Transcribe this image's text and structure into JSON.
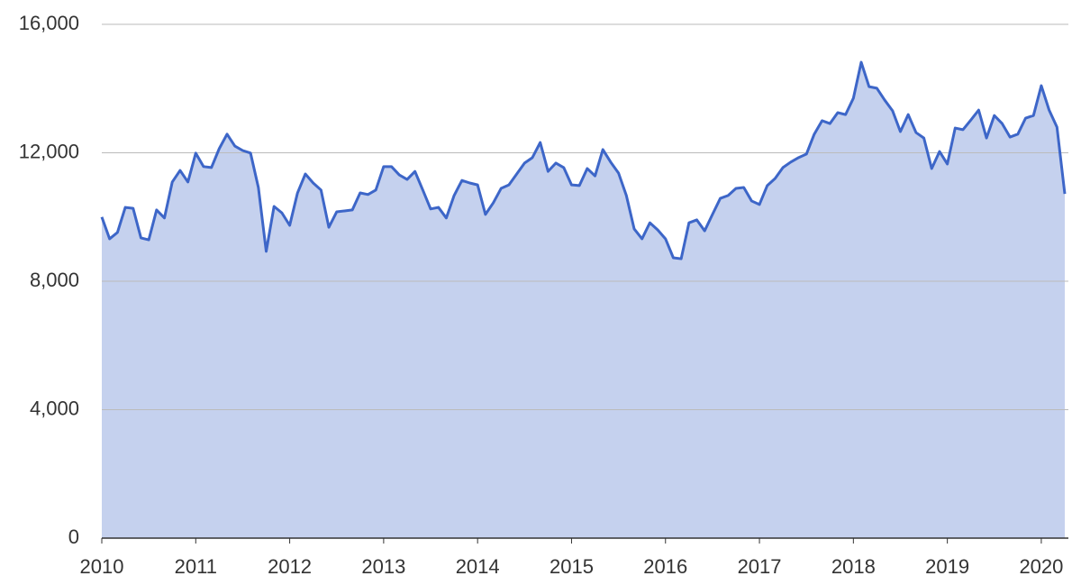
{
  "chart_data": {
    "type": "area",
    "x": [
      2010,
      2010.0833,
      2010.1667,
      2010.25,
      2010.3333,
      2010.4167,
      2010.5,
      2010.5833,
      2010.6667,
      2010.75,
      2010.8333,
      2010.9167,
      2011,
      2011.0833,
      2011.1667,
      2011.25,
      2011.3333,
      2011.4167,
      2011.5,
      2011.5833,
      2011.6667,
      2011.75,
      2011.8333,
      2011.9167,
      2012,
      2012.0833,
      2012.1667,
      2012.25,
      2012.3333,
      2012.4167,
      2012.5,
      2012.5833,
      2012.6667,
      2012.75,
      2012.8333,
      2012.9167,
      2013,
      2013.0833,
      2013.1667,
      2013.25,
      2013.3333,
      2013.4167,
      2013.5,
      2013.5833,
      2013.6667,
      2013.75,
      2013.8333,
      2013.9167,
      2014,
      2014.0833,
      2014.1667,
      2014.25,
      2014.3333,
      2014.4167,
      2014.5,
      2014.5833,
      2014.6667,
      2014.75,
      2014.8333,
      2014.9167,
      2015,
      2015.0833,
      2015.1667,
      2015.25,
      2015.3333,
      2015.4167,
      2015.5,
      2015.5833,
      2015.6667,
      2015.75,
      2015.8333,
      2015.9167,
      2016,
      2016.0833,
      2016.1667,
      2016.25,
      2016.3333,
      2016.4167,
      2016.5,
      2016.5833,
      2016.6667,
      2016.75,
      2016.8333,
      2016.9167,
      2017,
      2017.0833,
      2017.1667,
      2017.25,
      2017.3333,
      2017.4167,
      2017.5,
      2017.5833,
      2017.6667,
      2017.75,
      2017.8333,
      2017.9167,
      2018,
      2018.0833,
      2018.1667,
      2018.25,
      2018.3333,
      2018.4167,
      2018.5,
      2018.5833,
      2018.6667,
      2018.75,
      2018.8333,
      2018.9167,
      2019,
      2019.0833,
      2019.1667,
      2019.25,
      2019.3333,
      2019.4167,
      2019.5,
      2019.5833,
      2019.6667,
      2019.75,
      2019.8333,
      2019.9167,
      2020,
      2020.0833,
      2020.1667,
      2020.25
    ],
    "series": [
      {
        "color": "#3d66c8",
        "fill": "#c5d1ee",
        "values": [
          10000,
          9320,
          9520,
          10300,
          10270,
          9350,
          9290,
          10220,
          9970,
          11090,
          11450,
          11090,
          11990,
          11570,
          11540,
          12130,
          12580,
          12210,
          12070,
          11990,
          10920,
          8930,
          10330,
          10130,
          9740,
          10750,
          11340,
          11060,
          10840,
          9680,
          10160,
          10190,
          10220,
          10750,
          10700,
          10840,
          11570,
          11570,
          11310,
          11170,
          11420,
          10840,
          10250,
          10300,
          9970,
          10670,
          11140,
          11060,
          11000,
          10080,
          10440,
          10890,
          11000,
          11340,
          11680,
          11850,
          12320,
          11420,
          11680,
          11540,
          11000,
          10980,
          11510,
          11280,
          12100,
          11710,
          11370,
          10670,
          9630,
          9320,
          9820,
          9600,
          9320,
          8730,
          8700,
          9820,
          9910,
          9570,
          10080,
          10580,
          10670,
          10890,
          10920,
          10500,
          10390,
          10980,
          11200,
          11540,
          11710,
          11850,
          11960,
          12580,
          13000,
          12910,
          13250,
          13190,
          13700,
          14820,
          14060,
          14010,
          13640,
          13310,
          12660,
          13190,
          12630,
          12460,
          11510,
          12040,
          11650,
          12770,
          12720,
          13020,
          13330,
          12460,
          13160,
          12910,
          12490,
          12580,
          13080,
          13160,
          14090,
          13330,
          12800,
          10720
        ]
      }
    ],
    "xlim": [
      2010,
      2020.25
    ],
    "xticks": [
      2010,
      2011,
      2012,
      2013,
      2014,
      2015,
      2016,
      2017,
      2018,
      2019,
      2020
    ],
    "ylim": [
      0,
      16000
    ],
    "yticks": [
      0,
      {
        "value": 4000,
        "label": "4,000"
      },
      {
        "value": 8000,
        "label": "8,000"
      },
      {
        "value": 12000,
        "label": "12,000"
      },
      {
        "value": 16000,
        "label": "16,000"
      }
    ],
    "grid": true
  }
}
